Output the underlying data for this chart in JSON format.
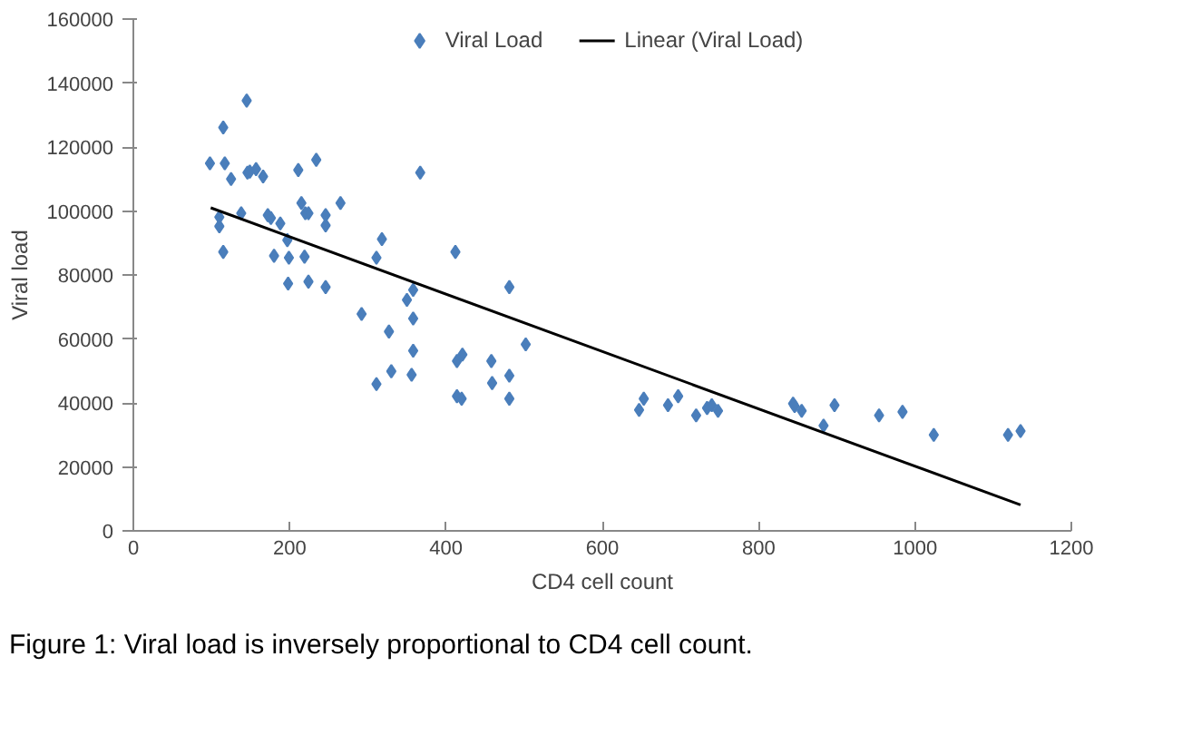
{
  "chart_data": {
    "type": "scatter",
    "xlabel": "CD4 cell count",
    "ylabel": "Viral load",
    "xlim": [
      0,
      1200
    ],
    "xticks": [
      0,
      200,
      400,
      600,
      800,
      1000,
      1200
    ],
    "ylim": [
      0,
      160000
    ],
    "yticks": [
      0,
      20000,
      40000,
      60000,
      80000,
      100000,
      120000,
      140000,
      160000
    ],
    "grid": false,
    "legend": "top",
    "annotations": [
      "Figure 1: Viral load is inversely proportional to CD4 cell count."
    ],
    "series": [
      {
        "name": "Viral Load",
        "color": "#4a7ebb",
        "marker": "diamond",
        "x": [
          98,
          115,
          117,
          125,
          110,
          110,
          115,
          138,
          145,
          146,
          149,
          157,
          166,
          172,
          176,
          188,
          180,
          197,
          199,
          198,
          211,
          215,
          220,
          224,
          219,
          224,
          234,
          246,
          246,
          246,
          265,
          292,
          311,
          318,
          327,
          311,
          330,
          350,
          358,
          367,
          358,
          358,
          356,
          412,
          414,
          421,
          414,
          420,
          458,
          459,
          481,
          481,
          481,
          502,
          647,
          653,
          684,
          697,
          720,
          734,
          740,
          748,
          844,
          846,
          855,
          883,
          897,
          954,
          984,
          1024,
          1119,
          1135
        ],
        "values": [
          114900,
          126100,
          114900,
          110000,
          98100,
          95200,
          87200,
          99300,
          134500,
          112000,
          112300,
          113100,
          110800,
          98700,
          97800,
          96100,
          86000,
          90900,
          85400,
          77300,
          112800,
          102500,
          99300,
          99300,
          85700,
          77900,
          116000,
          98700,
          95500,
          76200,
          102500,
          67800,
          85400,
          91200,
          62300,
          45900,
          49900,
          72200,
          75300,
          112000,
          66400,
          56300,
          48800,
          87200,
          53100,
          55100,
          42100,
          41300,
          53100,
          46200,
          76200,
          48500,
          41300,
          58300,
          37800,
          41300,
          39300,
          42100,
          36100,
          38400,
          39300,
          37500,
          39800,
          39000,
          37500,
          32900,
          39300,
          36100,
          37200,
          30000,
          30000,
          31200
        ]
      },
      {
        "name": "Linear (Viral Load)",
        "color": "#000000",
        "type": "line",
        "line_style": "solid",
        "x": [
          99,
          1135
        ],
        "values": [
          101000,
          8100
        ]
      }
    ]
  }
}
